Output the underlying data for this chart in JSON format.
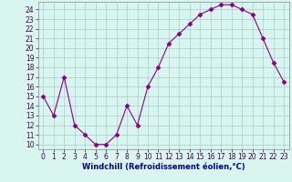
{
  "x": [
    0,
    1,
    2,
    3,
    4,
    5,
    6,
    7,
    8,
    9,
    10,
    11,
    12,
    13,
    14,
    15,
    16,
    17,
    18,
    19,
    20,
    21,
    22,
    23
  ],
  "y": [
    15,
    13,
    17,
    12,
    11,
    10,
    10,
    11,
    14,
    12,
    16,
    18,
    20.5,
    21.5,
    22.5,
    23.5,
    24,
    24.5,
    24.5,
    24,
    23.5,
    21,
    18.5,
    16.5
  ],
  "line_color": "#880088",
  "marker": "D",
  "marker_size": 2.5,
  "bg_color": "#d8f5f0",
  "grid_color": "#aacccc",
  "xlabel": "Windchill (Refroidissement éolien,°C)",
  "xlabel_color": "#000088",
  "xlabel_fontsize": 6.0,
  "tick_fontsize": 5.5,
  "ylim": [
    9.5,
    24.8
  ],
  "xlim": [
    -0.5,
    23.5
  ],
  "yticks": [
    10,
    11,
    12,
    13,
    14,
    15,
    16,
    17,
    18,
    19,
    20,
    21,
    22,
    23,
    24
  ],
  "xticks": [
    0,
    1,
    2,
    3,
    4,
    5,
    6,
    7,
    8,
    9,
    10,
    11,
    12,
    13,
    14,
    15,
    16,
    17,
    18,
    19,
    20,
    21,
    22,
    23
  ]
}
